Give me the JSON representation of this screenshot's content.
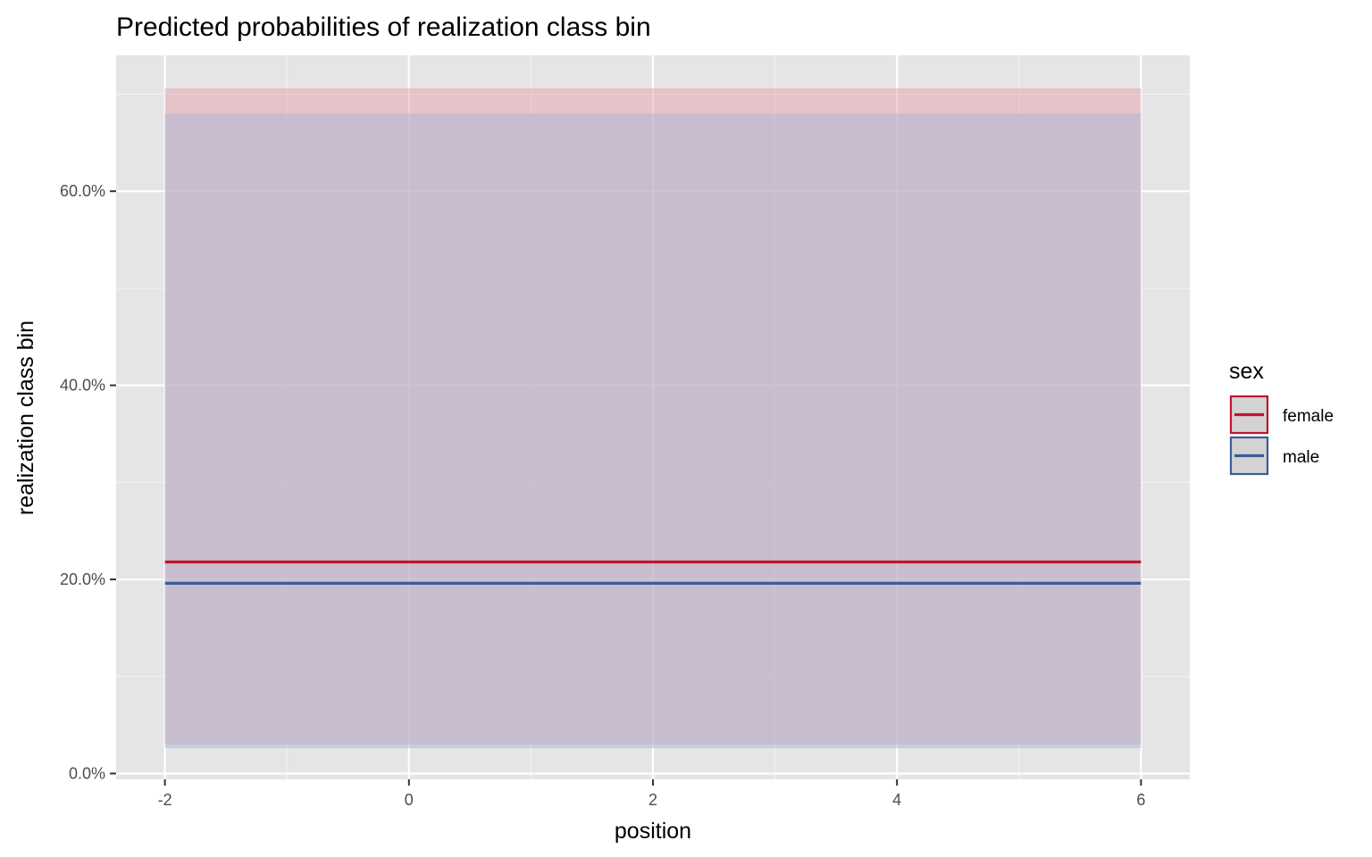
{
  "chart_data": {
    "type": "line",
    "title": "Predicted probabilities of realization class bin",
    "xlabel": "position",
    "ylabel": "realization class bin",
    "x_ticks": [
      "-2",
      "0",
      "2",
      "4",
      "6"
    ],
    "y_ticks": [
      "0.0%",
      "20.0%",
      "40.0%",
      "60.0%"
    ],
    "xlim": [
      -2.4,
      6.4
    ],
    "ylim": [
      -0.006,
      0.74
    ],
    "grid": true,
    "legend": {
      "title": "sex",
      "position": "right"
    },
    "series": [
      {
        "name": "female",
        "color": "#c0142c",
        "x": [
          -2,
          6
        ],
        "y": [
          0.218,
          0.218
        ],
        "ci_low": [
          0.03,
          0.03
        ],
        "ci_high": [
          0.706,
          0.706
        ],
        "band_color": "#e8a2ab"
      },
      {
        "name": "male",
        "color": "#3a5e96",
        "x": [
          -2,
          6
        ],
        "y": [
          0.196,
          0.196
        ],
        "ci_low": [
          0.026,
          0.026
        ],
        "ci_high": [
          0.68,
          0.68
        ],
        "band_color": "#a8b8d4"
      }
    ]
  }
}
